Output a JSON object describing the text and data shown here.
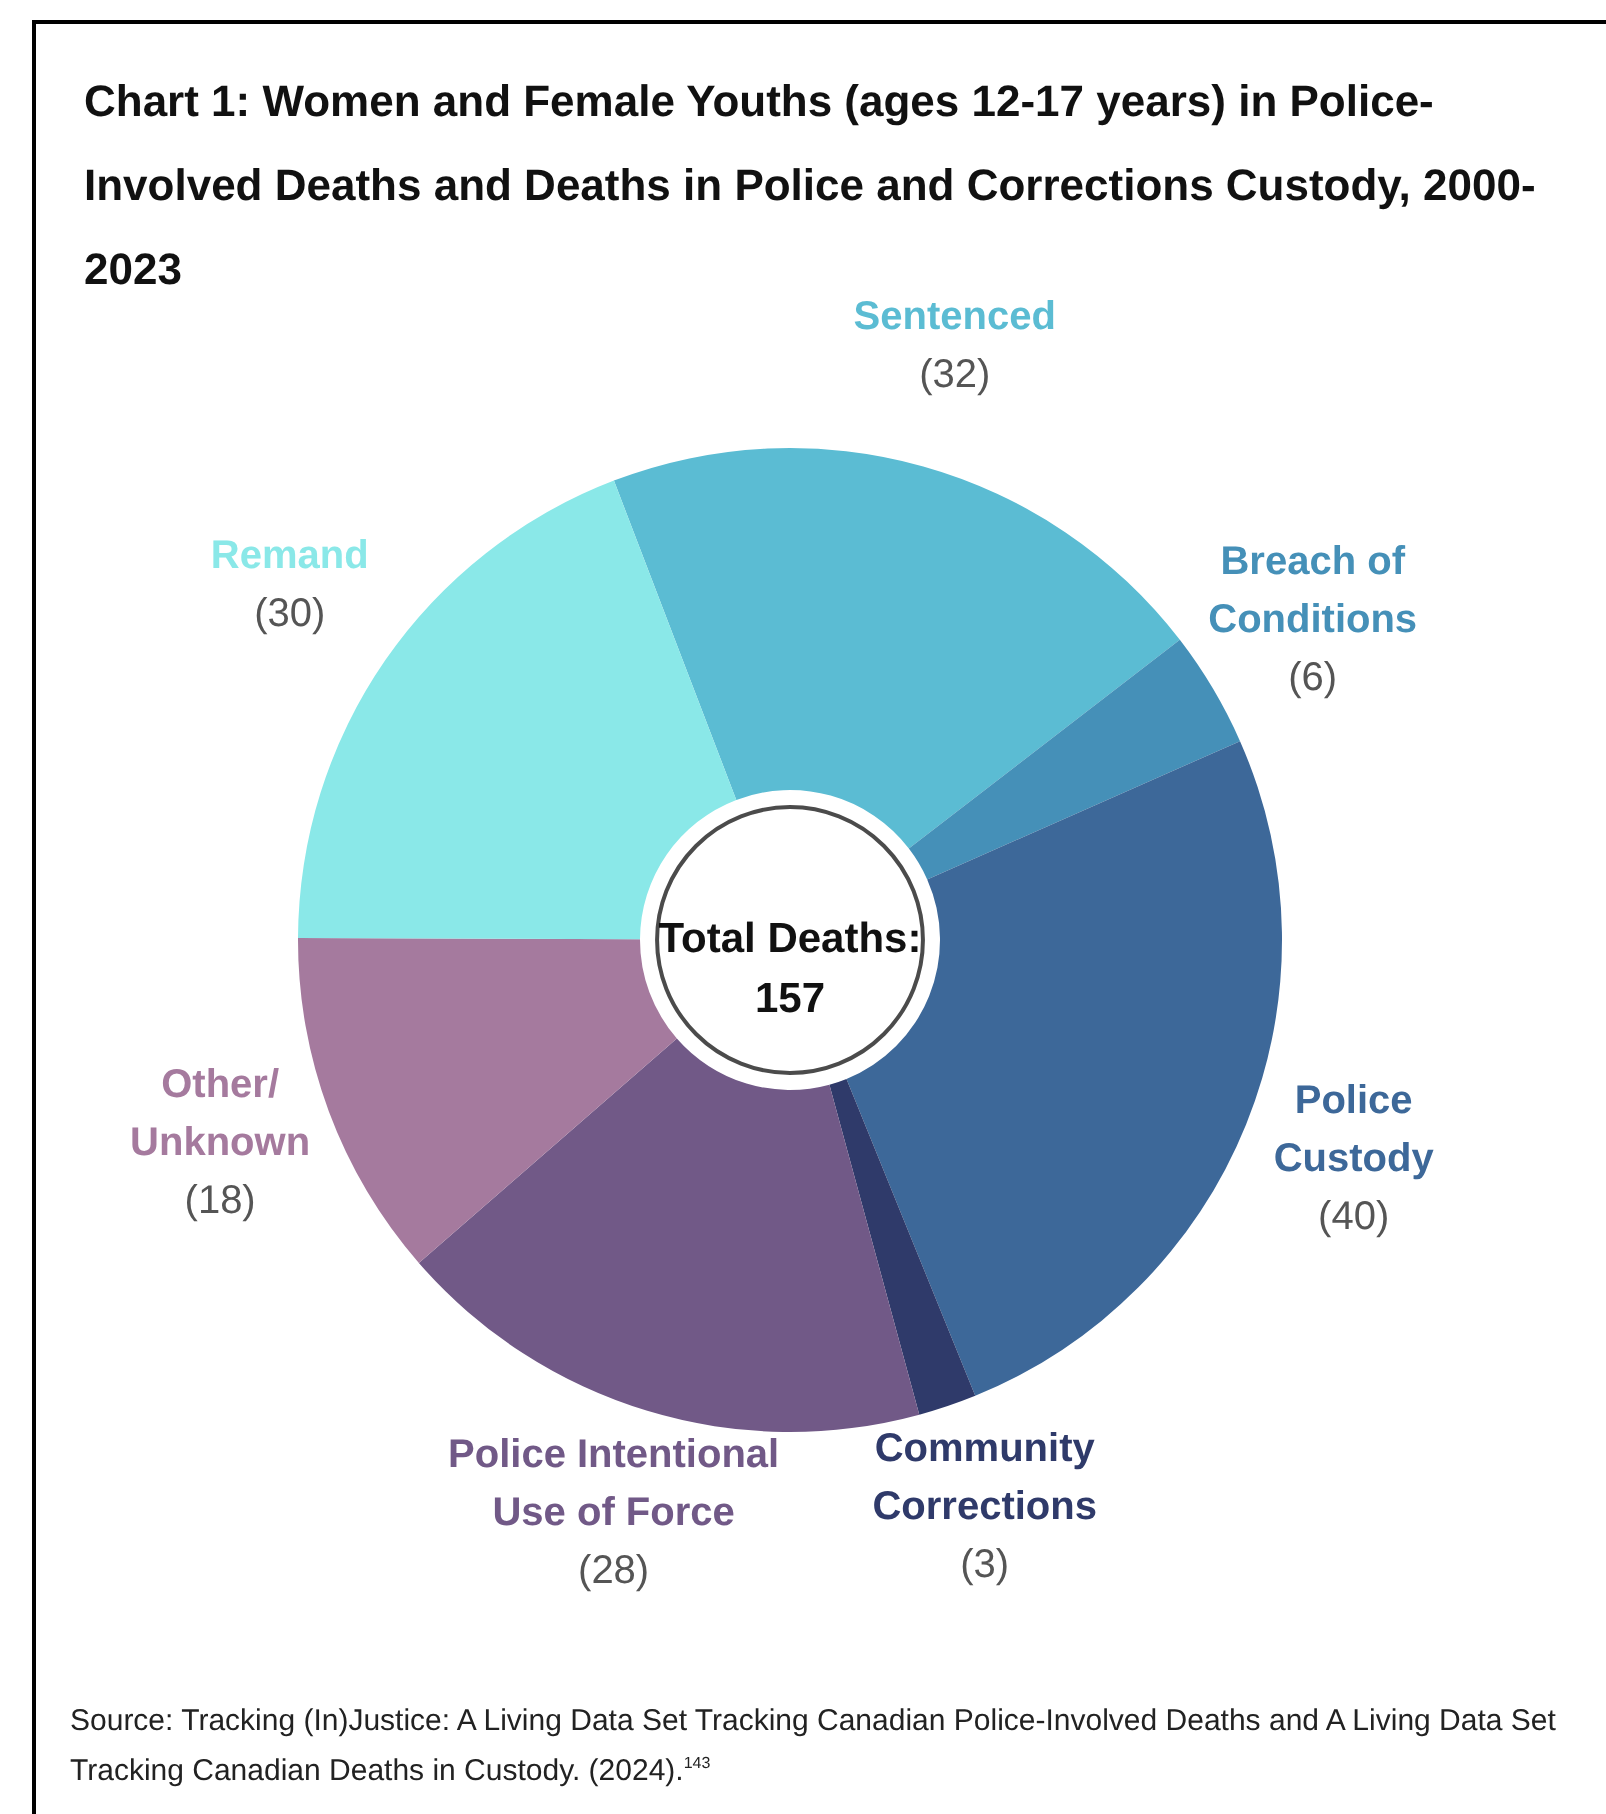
{
  "chart_data": {
    "type": "donut",
    "title": "Chart 1: Women and Female Youths (ages 12-17 years) in Police-Involved Deaths and Deaths in Police and Corrections Custody, 2000-2023",
    "categories": [
      "Sentenced",
      "Breach of Conditions",
      "Police Custody",
      "Community Corrections",
      "Police Intentional Use of Force",
      "Other/Unknown",
      "Remand"
    ],
    "values": [
      32,
      6,
      40,
      3,
      28,
      18,
      30
    ],
    "colors": [
      "#5bbcd3",
      "#4590b8",
      "#3d6899",
      "#2f3a6a",
      "#715987",
      "#a57a9e",
      "#8ae8e8"
    ],
    "value_labels": [
      "(32)",
      "(6)",
      "(40)",
      "(3)",
      "(28)",
      "(18)",
      "(30)"
    ],
    "annotations": [
      "Total Deaths: 157",
      "Source: Tracking (In)Justice: A Living Data Set Tracking Canadian Police-Involved Deaths and A Living Data Set Tracking Canadian Deaths in Custody. (2024).$^{143}$"
    ]
  }
}
